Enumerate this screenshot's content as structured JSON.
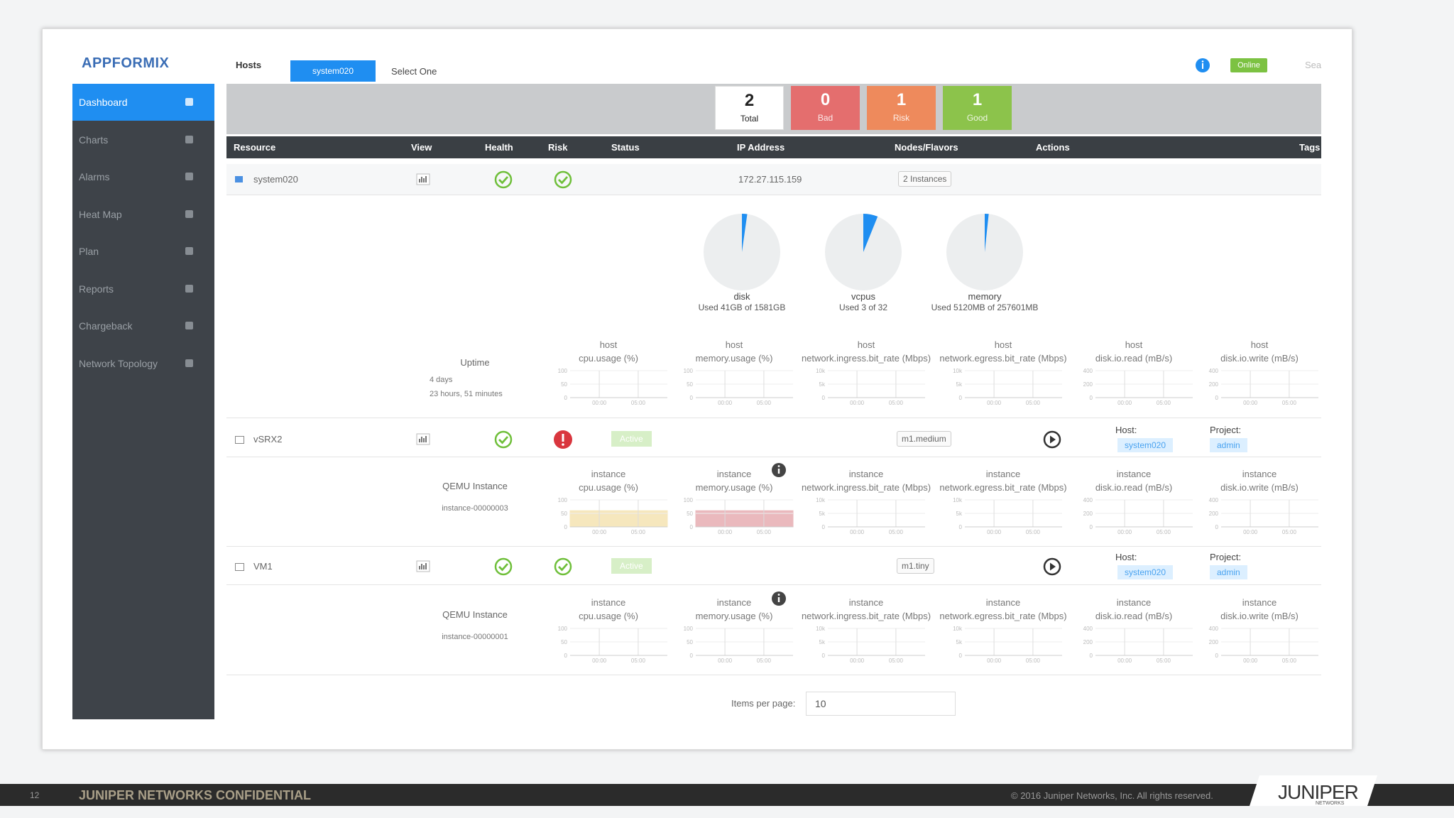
{
  "header": {
    "logo": "APPFORMIX",
    "hosts": "Hosts",
    "host_selected": "system020",
    "select": "Select One",
    "online": "Online",
    "search": "Sea"
  },
  "sidebar": [
    "Dashboard",
    "Charts",
    "Alarms",
    "Heat Map",
    "Plan",
    "Reports",
    "Chargeback",
    "Network Topology"
  ],
  "summary": [
    {
      "value": 2,
      "label": "Total",
      "color": "#ffffff"
    },
    {
      "value": 0,
      "label": "Bad",
      "color": "#e46e6e"
    },
    {
      "value": 1,
      "label": "Risk",
      "color": "#ee8a5c"
    },
    {
      "value": 1,
      "label": "Good",
      "color": "#8cc34b"
    }
  ],
  "table": {
    "columns": [
      "Resource",
      "View",
      "Health",
      "Risk",
      "Status",
      "IP Address",
      "Nodes/Flavors",
      "Actions",
      "Tags"
    ],
    "rows": [
      {
        "name": "system020",
        "ip": "172.27.115.159",
        "nodes": "2 Instances",
        "health": "ok",
        "risk": "ok",
        "pies": [
          {
            "name": "disk",
            "caption": "Used 41GB of 1581GB"
          },
          {
            "name": "vcpus",
            "caption": "Used 3 of 32"
          },
          {
            "name": "memory",
            "caption": "Used 5120MB of 257601MB"
          }
        ],
        "detail": {
          "label": "Uptime",
          "lines": [
            "4 days",
            "23 hours, 51 minutes"
          ],
          "metrics": [
            {
              "scope": "host",
              "name": "cpu.usage (%)",
              "yticks": [
                "100",
                "50",
                "0"
              ],
              "xticks": [
                "00:00",
                "05:00"
              ]
            },
            {
              "scope": "host",
              "name": "memory.usage (%)",
              "yticks": [
                "100",
                "50",
                "0"
              ],
              "xticks": [
                "00:00",
                "05:00"
              ]
            },
            {
              "scope": "host",
              "name": "network.ingress.bit_rate (Mbps)",
              "yticks": [
                "10k",
                "5k",
                "0"
              ],
              "xticks": [
                "00:00",
                "05:00"
              ]
            },
            {
              "scope": "host",
              "name": "network.egress.bit_rate (Mbps)",
              "yticks": [
                "10k",
                "5k",
                "0"
              ],
              "xticks": [
                "00:00",
                "05:00"
              ]
            },
            {
              "scope": "host",
              "name": "disk.io.read (mB/s)",
              "yticks": [
                "400",
                "200",
                "0"
              ],
              "xticks": [
                "00:00",
                "05:00"
              ]
            },
            {
              "scope": "host",
              "name": "disk.io.write (mB/s)",
              "yticks": [
                "400",
                "200",
                "0"
              ],
              "xticks": [
                "00:00",
                "05:00"
              ]
            }
          ]
        }
      },
      {
        "name": "vSRX2",
        "status": "Active",
        "nodes": "m1.medium",
        "health": "ok",
        "risk": "bad",
        "host_label": "Host:",
        "host": "system020",
        "project_label": "Project:",
        "project": "admin",
        "detail": {
          "label": "QEMU Instance",
          "lines": [
            "instance-00000003"
          ],
          "metrics": [
            {
              "scope": "instance",
              "name": "cpu.usage (%)",
              "yticks": [
                "100",
                "50",
                "0"
              ],
              "xticks": [
                "00:00",
                "05:00"
              ],
              "fill": "#f6e7bd"
            },
            {
              "scope": "instance",
              "name": "memory.usage (%)",
              "yticks": [
                "100",
                "50",
                "0"
              ],
              "xticks": [
                "00:00",
                "05:00"
              ],
              "fill": "#eab9bd",
              "info": true
            },
            {
              "scope": "instance",
              "name": "network.ingress.bit_rate (Mbps)",
              "yticks": [
                "10k",
                "5k",
                "0"
              ],
              "xticks": [
                "00:00",
                "05:00"
              ]
            },
            {
              "scope": "instance",
              "name": "network.egress.bit_rate (Mbps)",
              "yticks": [
                "10k",
                "5k",
                "0"
              ],
              "xticks": [
                "00:00",
                "05:00"
              ]
            },
            {
              "scope": "instance",
              "name": "disk.io.read (mB/s)",
              "yticks": [
                "400",
                "200",
                "0"
              ],
              "xticks": [
                "00:00",
                "05:00"
              ]
            },
            {
              "scope": "instance",
              "name": "disk.io.write (mB/s)",
              "yticks": [
                "400",
                "200",
                "0"
              ],
              "xticks": [
                "00:00",
                "05:00"
              ]
            }
          ]
        }
      },
      {
        "name": "VM1",
        "status": "Active",
        "nodes": "m1.tiny",
        "health": "ok",
        "risk": "ok",
        "host_label": "Host:",
        "host": "system020",
        "project_label": "Project:",
        "project": "admin",
        "detail": {
          "label": "QEMU Instance",
          "lines": [
            "instance-00000001"
          ],
          "metrics": [
            {
              "scope": "instance",
              "name": "cpu.usage (%)",
              "yticks": [
                "100",
                "50",
                "0"
              ],
              "xticks": [
                "00:00",
                "05:00"
              ]
            },
            {
              "scope": "instance",
              "name": "memory.usage (%)",
              "yticks": [
                "100",
                "50",
                "0"
              ],
              "xticks": [
                "00:00",
                "05:00"
              ],
              "info": true
            },
            {
              "scope": "instance",
              "name": "network.ingress.bit_rate (Mbps)",
              "yticks": [
                "10k",
                "5k",
                "0"
              ],
              "xticks": [
                "00:00",
                "05:00"
              ]
            },
            {
              "scope": "instance",
              "name": "network.egress.bit_rate (Mbps)",
              "yticks": [
                "10k",
                "5k",
                "0"
              ],
              "xticks": [
                "00:00",
                "05:00"
              ]
            },
            {
              "scope": "instance",
              "name": "disk.io.read (mB/s)",
              "yticks": [
                "400",
                "200",
                "0"
              ],
              "xticks": [
                "00:00",
                "05:00"
              ]
            },
            {
              "scope": "instance",
              "name": "disk.io.write (mB/s)",
              "yticks": [
                "400",
                "200",
                "0"
              ],
              "xticks": [
                "00:00",
                "05:00"
              ]
            }
          ]
        }
      }
    ]
  },
  "pagination": {
    "label": "Items per page:",
    "value": "10"
  },
  "footer": {
    "page": "12",
    "confidential": "JUNIPER NETWORKS CONFIDENTIAL",
    "copyright": "© 2016 Juniper Networks, Inc. All rights reserved.",
    "logo": "JUNIPER",
    "logo_sub": "NETWORKS"
  }
}
